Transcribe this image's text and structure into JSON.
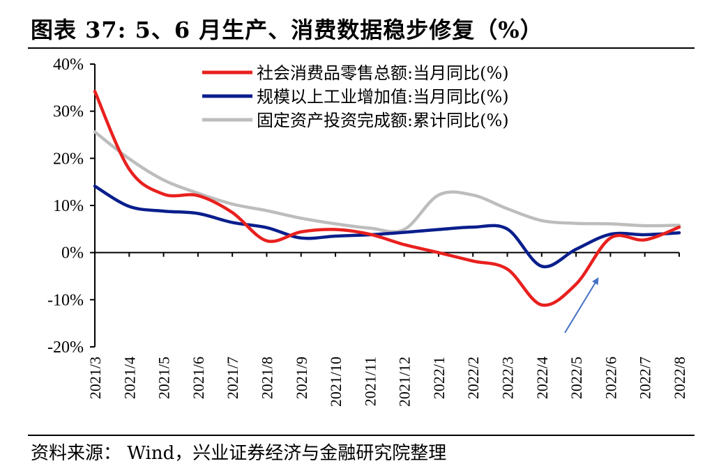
{
  "title": "图表 37:  5、6 月生产、消费数据稳步修复（%）",
  "source": "资料来源： Wind，兴业证券经济与金融研究院整理",
  "chart_data": {
    "type": "line",
    "title": "图表 37:  5、6 月生产、消费数据稳步修复（%）",
    "xlabel": "",
    "ylabel": "",
    "ylim": [
      -20,
      40
    ],
    "yticks": [
      -20,
      -10,
      0,
      10,
      20,
      30,
      40
    ],
    "ytick_labels": [
      "-20%",
      "-10%",
      "0%",
      "10%",
      "20%",
      "30%",
      "40%"
    ],
    "categories": [
      "2021/3",
      "2021/4",
      "2021/5",
      "2021/6",
      "2021/7",
      "2021/8",
      "2021/9",
      "2021/10",
      "2021/11",
      "2021/12",
      "2022/1",
      "2022/2",
      "2022/3",
      "2022/4",
      "2022/5",
      "2022/6",
      "2022/7",
      "2022/8"
    ],
    "legend_position": "top-right",
    "series": [
      {
        "name": "社会消费品零售总额:当月同比(%)",
        "color": "#e8201e",
        "values": [
          34.2,
          17.7,
          12.4,
          12.1,
          8.5,
          2.5,
          4.4,
          4.9,
          3.9,
          1.7,
          0.0,
          -1.8,
          -3.5,
          -11.1,
          -6.7,
          3.1,
          2.7,
          5.4
        ]
      },
      {
        "name": "规模以上工业增加值:当月同比(%)",
        "color": "#0a1e8c",
        "values": [
          14.1,
          9.8,
          8.8,
          8.3,
          6.4,
          5.3,
          3.1,
          3.5,
          3.8,
          4.3,
          4.9,
          5.4,
          5.0,
          -2.9,
          0.7,
          3.9,
          3.8,
          4.2
        ]
      },
      {
        "name": "固定资产投资完成额:累计同比(%)",
        "color": "#bdbdbd",
        "values": [
          25.6,
          19.9,
          15.4,
          12.6,
          10.3,
          8.9,
          7.3,
          6.1,
          5.2,
          4.9,
          12.2,
          12.2,
          9.3,
          6.8,
          6.2,
          6.1,
          5.7,
          5.8
        ]
      }
    ],
    "annotations": [
      {
        "type": "arrow",
        "label": "",
        "from": {
          "x": "2022/5",
          "y": -17
        },
        "to": {
          "x": "2022/6",
          "y": -5.5
        },
        "color": "#4472c4"
      }
    ]
  }
}
